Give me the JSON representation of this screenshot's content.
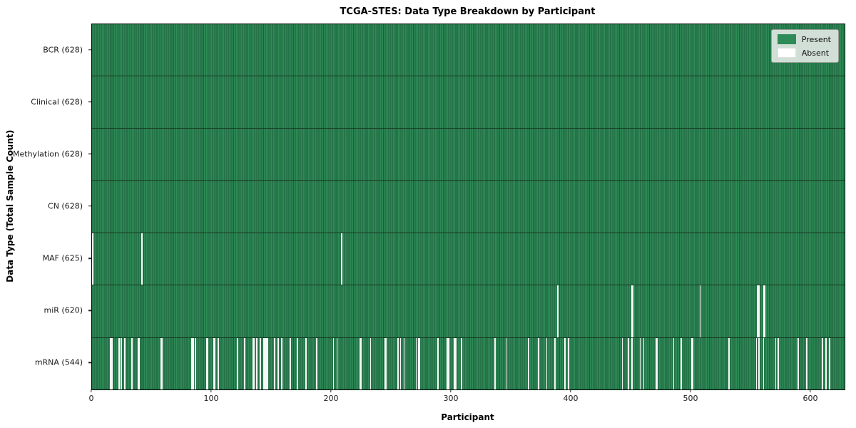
{
  "chart_data": {
    "type": "heatmap",
    "title": "TCGA-STES: Data Type Breakdown by Participant",
    "xlabel": "Participant",
    "ylabel": "Data Type (Total Sample Count)",
    "n_participants": 628,
    "x_ticks": [
      0,
      100,
      200,
      300,
      400,
      500,
      600
    ],
    "grid": false,
    "legend_position": "upper right",
    "legend": [
      {
        "label": "Present",
        "color": "#2e8b57"
      },
      {
        "label": "Absent",
        "color": "#ffffff"
      }
    ],
    "colors": {
      "present": "#2e8b57",
      "present_edge": "#1f5e3b",
      "absent": "#ffffff",
      "row_separator": "#16351f"
    },
    "rows": [
      {
        "name": "BCR",
        "label": "BCR (628)",
        "total": 628,
        "present": 628,
        "absent": 0,
        "absent_indices": []
      },
      {
        "name": "Clinical",
        "label": "Clinical (628)",
        "total": 628,
        "present": 628,
        "absent": 0,
        "absent_indices": []
      },
      {
        "name": "Methylation",
        "label": "Methylation (628)",
        "total": 628,
        "present": 628,
        "absent": 0,
        "absent_indices": []
      },
      {
        "name": "CN",
        "label": "CN (628)",
        "total": 628,
        "present": 628,
        "absent": 0,
        "absent_indices": []
      },
      {
        "name": "MAF",
        "label": "MAF (625)",
        "total": 625,
        "present": 625,
        "absent": 3,
        "absent_indices": [
          0,
          41,
          208
        ]
      },
      {
        "name": "miR",
        "label": "miR (620)",
        "total": 620,
        "present": 620,
        "absent": 8,
        "absent_indices": [
          388,
          450,
          451,
          507,
          555,
          556,
          560,
          561
        ]
      },
      {
        "name": "mRNA",
        "label": "mRNA (544)",
        "total": 544,
        "present": 544,
        "absent": 84,
        "absent_indices": [
          15,
          16,
          22,
          24,
          27,
          33,
          38,
          39,
          57,
          58,
          83,
          84,
          86,
          95,
          96,
          101,
          102,
          105,
          121,
          127,
          134,
          135,
          137,
          140,
          143,
          144,
          145,
          146,
          152,
          155,
          158,
          165,
          171,
          178,
          187,
          201,
          204,
          223,
          224,
          232,
          244,
          245,
          255,
          257,
          260,
          270,
          272,
          273,
          288,
          296,
          297,
          302,
          303,
          308,
          336,
          345,
          364,
          372,
          379,
          386,
          394,
          397,
          442,
          447,
          450,
          457,
          460,
          470,
          471,
          485,
          491,
          500,
          501,
          531,
          554,
          556,
          560,
          570,
          572,
          589,
          596,
          609,
          612,
          615
        ]
      }
    ]
  }
}
